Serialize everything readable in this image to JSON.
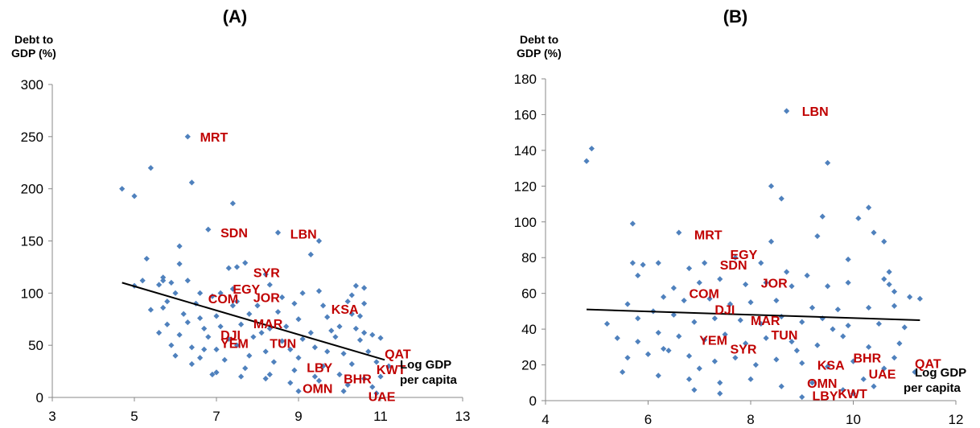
{
  "colors": {
    "point": "#4f81bd",
    "country": "#c00000",
    "trend": "#000000",
    "axis": "#888888"
  },
  "chart_data": [
    {
      "type": "scatter",
      "title": "(A)",
      "ylabel": [
        "Debt to",
        "GDP (%)"
      ],
      "xlabel": [
        "Log GDP",
        "per capita"
      ],
      "xlim": [
        3,
        13
      ],
      "ylim": [
        0,
        300
      ],
      "xticks": [
        "3",
        "5",
        "7",
        "9",
        "11",
        "13"
      ],
      "yticks": [
        "0",
        "50",
        "100",
        "150",
        "200",
        "250",
        "300"
      ],
      "grid": false,
      "trendline": [
        [
          4.7,
          110
        ],
        [
          11.1,
          36
        ]
      ],
      "points": [
        [
          4.7,
          200
        ],
        [
          5.0,
          193
        ],
        [
          5.4,
          220
        ],
        [
          6.3,
          250
        ],
        [
          6.4,
          206
        ],
        [
          7.4,
          186
        ],
        [
          6.8,
          161
        ],
        [
          8.5,
          158
        ],
        [
          9.5,
          150
        ],
        [
          9.3,
          137
        ],
        [
          5.3,
          133
        ],
        [
          6.1,
          145
        ],
        [
          6.1,
          128
        ],
        [
          7.7,
          129
        ],
        [
          7.3,
          124
        ],
        [
          7.5,
          125
        ],
        [
          8.2,
          118
        ],
        [
          5.7,
          115
        ],
        [
          5.9,
          110
        ],
        [
          6.3,
          112
        ],
        [
          5.0,
          107
        ],
        [
          5.2,
          112
        ],
        [
          5.6,
          108
        ],
        [
          5.7,
          112
        ],
        [
          6.0,
          100
        ],
        [
          6.6,
          100
        ],
        [
          6.9,
          97
        ],
        [
          7.1,
          100
        ],
        [
          7.4,
          104
        ],
        [
          8.3,
          108
        ],
        [
          9.1,
          100
        ],
        [
          9.5,
          102
        ],
        [
          10.4,
          107
        ],
        [
          10.6,
          105
        ],
        [
          10.3,
          98
        ],
        [
          5.8,
          92
        ],
        [
          6.5,
          90
        ],
        [
          7.5,
          92
        ],
        [
          8.0,
          88
        ],
        [
          8.9,
          90
        ],
        [
          9.6,
          88
        ],
        [
          10.2,
          92
        ],
        [
          10.6,
          90
        ],
        [
          5.4,
          84
        ],
        [
          5.7,
          86
        ],
        [
          6.2,
          80
        ],
        [
          6.6,
          76
        ],
        [
          7.0,
          78
        ],
        [
          7.8,
          80
        ],
        [
          8.5,
          82
        ],
        [
          9.0,
          75
        ],
        [
          9.7,
          77
        ],
        [
          10.3,
          80
        ],
        [
          10.5,
          78
        ],
        [
          5.8,
          70
        ],
        [
          6.3,
          72
        ],
        [
          6.7,
          66
        ],
        [
          7.1,
          68
        ],
        [
          7.6,
          70
        ],
        [
          8.3,
          66
        ],
        [
          8.7,
          68
        ],
        [
          9.3,
          62
        ],
        [
          9.8,
          64
        ],
        [
          10.4,
          66
        ],
        [
          10.6,
          62
        ],
        [
          6.1,
          60
        ],
        [
          6.8,
          58
        ],
        [
          7.3,
          56
        ],
        [
          7.9,
          58
        ],
        [
          8.6,
          54
        ],
        [
          9.1,
          56
        ],
        [
          9.9,
          58
        ],
        [
          10.5,
          55
        ],
        [
          10.8,
          60
        ],
        [
          11.0,
          57
        ],
        [
          5.9,
          50
        ],
        [
          6.4,
          48
        ],
        [
          7.0,
          46
        ],
        [
          7.5,
          50
        ],
        [
          8.2,
          44
        ],
        [
          8.8,
          46
        ],
        [
          9.4,
          48
        ],
        [
          10.1,
          42
        ],
        [
          10.7,
          44
        ],
        [
          6.0,
          40
        ],
        [
          6.6,
          38
        ],
        [
          7.2,
          36
        ],
        [
          7.8,
          40
        ],
        [
          8.4,
          34
        ],
        [
          9.0,
          38
        ],
        [
          9.6,
          30
        ],
        [
          10.3,
          32
        ],
        [
          10.9,
          34
        ],
        [
          11.2,
          30
        ],
        [
          6.4,
          32
        ],
        [
          7.0,
          24
        ],
        [
          7.7,
          28
        ],
        [
          8.3,
          22
        ],
        [
          8.9,
          26
        ],
        [
          9.4,
          20
        ],
        [
          10.0,
          22
        ],
        [
          10.6,
          18
        ],
        [
          11.0,
          20
        ],
        [
          6.9,
          22
        ],
        [
          7.6,
          20
        ],
        [
          8.2,
          18
        ],
        [
          8.8,
          14
        ],
        [
          9.5,
          16
        ],
        [
          10.2,
          12
        ],
        [
          10.8,
          10
        ],
        [
          9.0,
          6
        ],
        [
          10.1,
          6
        ],
        [
          10.9,
          4
        ],
        [
          5.6,
          62
        ],
        [
          6.7,
          46
        ],
        [
          8.1,
          62
        ],
        [
          9.7,
          44
        ],
        [
          10.0,
          68
        ],
        [
          7.4,
          88
        ],
        [
          8.6,
          96
        ]
      ],
      "labels": [
        {
          "text": "MRT",
          "x": 6.6,
          "y": 250
        },
        {
          "text": "SDN",
          "x": 7.1,
          "y": 158
        },
        {
          "text": "LBN",
          "x": 8.8,
          "y": 157
        },
        {
          "text": "SYR",
          "x": 7.9,
          "y": 120
        },
        {
          "text": "EGY",
          "x": 7.4,
          "y": 104
        },
        {
          "text": "COM",
          "x": 6.8,
          "y": 95
        },
        {
          "text": "JOR",
          "x": 7.9,
          "y": 96
        },
        {
          "text": "KSA",
          "x": 9.8,
          "y": 85
        },
        {
          "text": "MAR",
          "x": 7.9,
          "y": 71
        },
        {
          "text": "DJI",
          "x": 7.1,
          "y": 60
        },
        {
          "text": "YEM",
          "x": 7.1,
          "y": 52
        },
        {
          "text": "TUN",
          "x": 8.3,
          "y": 52
        },
        {
          "text": "QAT",
          "x": 11.1,
          "y": 42
        },
        {
          "text": "LBY",
          "x": 9.2,
          "y": 29
        },
        {
          "text": "KWT",
          "x": 10.9,
          "y": 27
        },
        {
          "text": "BHR",
          "x": 10.1,
          "y": 18
        },
        {
          "text": "OMN",
          "x": 9.1,
          "y": 9
        },
        {
          "text": "UAE",
          "x": 10.7,
          "y": 1
        }
      ]
    },
    {
      "type": "scatter",
      "title": "(B)",
      "ylabel": [
        "Debt to",
        "GDP (%)"
      ],
      "xlabel": [
        "Log GDP",
        "per capita"
      ],
      "xlim": [
        4,
        12
      ],
      "ylim": [
        0,
        180
      ],
      "xticks": [
        "4",
        "6",
        "8",
        "10",
        "12"
      ],
      "yticks": [
        "0",
        "20",
        "40",
        "60",
        "80",
        "100",
        "120",
        "140",
        "160",
        "180"
      ],
      "grid": false,
      "trendline": [
        [
          4.8,
          51
        ],
        [
          11.3,
          45
        ]
      ],
      "points": [
        [
          4.8,
          134
        ],
        [
          4.9,
          141
        ],
        [
          8.7,
          162
        ],
        [
          9.5,
          133
        ],
        [
          8.4,
          120
        ],
        [
          8.6,
          113
        ],
        [
          10.3,
          108
        ],
        [
          10.1,
          102
        ],
        [
          9.4,
          103
        ],
        [
          5.7,
          99
        ],
        [
          9.3,
          92
        ],
        [
          10.4,
          94
        ],
        [
          6.6,
          94
        ],
        [
          8.4,
          89
        ],
        [
          10.6,
          89
        ],
        [
          9.9,
          79
        ],
        [
          10.7,
          72
        ],
        [
          5.7,
          77
        ],
        [
          5.9,
          76
        ],
        [
          6.2,
          77
        ],
        [
          6.8,
          74
        ],
        [
          7.1,
          77
        ],
        [
          7.7,
          80
        ],
        [
          8.2,
          77
        ],
        [
          8.7,
          72
        ],
        [
          9.1,
          70
        ],
        [
          10.6,
          68
        ],
        [
          10.7,
          65
        ],
        [
          5.8,
          70
        ],
        [
          6.5,
          63
        ],
        [
          7.0,
          66
        ],
        [
          7.4,
          68
        ],
        [
          7.9,
          65
        ],
        [
          8.3,
          66
        ],
        [
          8.8,
          64
        ],
        [
          9.5,
          64
        ],
        [
          9.9,
          66
        ],
        [
          10.8,
          61
        ],
        [
          11.1,
          58
        ],
        [
          11.3,
          57
        ],
        [
          5.6,
          54
        ],
        [
          6.3,
          58
        ],
        [
          6.7,
          56
        ],
        [
          7.2,
          57
        ],
        [
          7.6,
          54
        ],
        [
          8.0,
          55
        ],
        [
          8.5,
          56
        ],
        [
          9.2,
          52
        ],
        [
          9.7,
          51
        ],
        [
          10.3,
          52
        ],
        [
          10.8,
          53
        ],
        [
          5.2,
          43
        ],
        [
          5.8,
          46
        ],
        [
          6.1,
          50
        ],
        [
          6.5,
          48
        ],
        [
          6.9,
          44
        ],
        [
          7.3,
          46
        ],
        [
          7.8,
          45
        ],
        [
          8.2,
          43
        ],
        [
          8.6,
          47
        ],
        [
          9.0,
          44
        ],
        [
          9.4,
          46
        ],
        [
          9.9,
          42
        ],
        [
          10.5,
          43
        ],
        [
          11.0,
          41
        ],
        [
          5.4,
          35
        ],
        [
          5.8,
          33
        ],
        [
          6.2,
          38
        ],
        [
          6.6,
          36
        ],
        [
          7.1,
          34
        ],
        [
          7.5,
          37
        ],
        [
          7.9,
          32
        ],
        [
          8.3,
          35
        ],
        [
          8.8,
          33
        ],
        [
          9.3,
          31
        ],
        [
          9.8,
          36
        ],
        [
          10.3,
          30
        ],
        [
          10.9,
          32
        ],
        [
          5.6,
          24
        ],
        [
          6.0,
          26
        ],
        [
          6.4,
          28
        ],
        [
          6.8,
          25
        ],
        [
          7.3,
          22
        ],
        [
          7.7,
          24
        ],
        [
          8.1,
          20
        ],
        [
          8.5,
          23
        ],
        [
          9.0,
          21
        ],
        [
          9.5,
          19
        ],
        [
          10.0,
          22
        ],
        [
          10.6,
          18
        ],
        [
          11.2,
          16
        ],
        [
          5.5,
          16
        ],
        [
          6.2,
          14
        ],
        [
          6.8,
          12
        ],
        [
          7.4,
          10
        ],
        [
          8.0,
          12
        ],
        [
          8.6,
          8
        ],
        [
          9.2,
          10
        ],
        [
          9.8,
          6
        ],
        [
          10.4,
          8
        ],
        [
          7.4,
          4
        ],
        [
          9.0,
          2
        ],
        [
          10.0,
          4
        ],
        [
          6.3,
          29
        ],
        [
          7.0,
          18
        ],
        [
          8.9,
          28
        ],
        [
          9.6,
          40
        ],
        [
          10.2,
          12
        ],
        [
          10.8,
          24
        ],
        [
          6.9,
          6
        ]
      ],
      "labels": [
        {
          "text": "LBN",
          "x": 9.0,
          "y": 162
        },
        {
          "text": "MRT",
          "x": 6.9,
          "y": 93
        },
        {
          "text": "EGY",
          "x": 7.6,
          "y": 82
        },
        {
          "text": "SDN",
          "x": 7.4,
          "y": 76
        },
        {
          "text": "JOR",
          "x": 8.2,
          "y": 66
        },
        {
          "text": "COM",
          "x": 6.8,
          "y": 60
        },
        {
          "text": "DJI",
          "x": 7.3,
          "y": 51
        },
        {
          "text": "MAR",
          "x": 8.0,
          "y": 45
        },
        {
          "text": "TUN",
          "x": 8.4,
          "y": 37
        },
        {
          "text": "YEM",
          "x": 7.0,
          "y": 34
        },
        {
          "text": "SYR",
          "x": 7.6,
          "y": 29
        },
        {
          "text": "BHR",
          "x": 10.0,
          "y": 24
        },
        {
          "text": "KSA",
          "x": 9.3,
          "y": 20
        },
        {
          "text": "QAT",
          "x": 11.2,
          "y": 21
        },
        {
          "text": "UAE",
          "x": 10.3,
          "y": 15
        },
        {
          "text": "OMN",
          "x": 9.1,
          "y": 10
        },
        {
          "text": "KWT",
          "x": 9.7,
          "y": 4
        },
        {
          "text": "LBY",
          "x": 9.2,
          "y": 3
        }
      ]
    }
  ]
}
